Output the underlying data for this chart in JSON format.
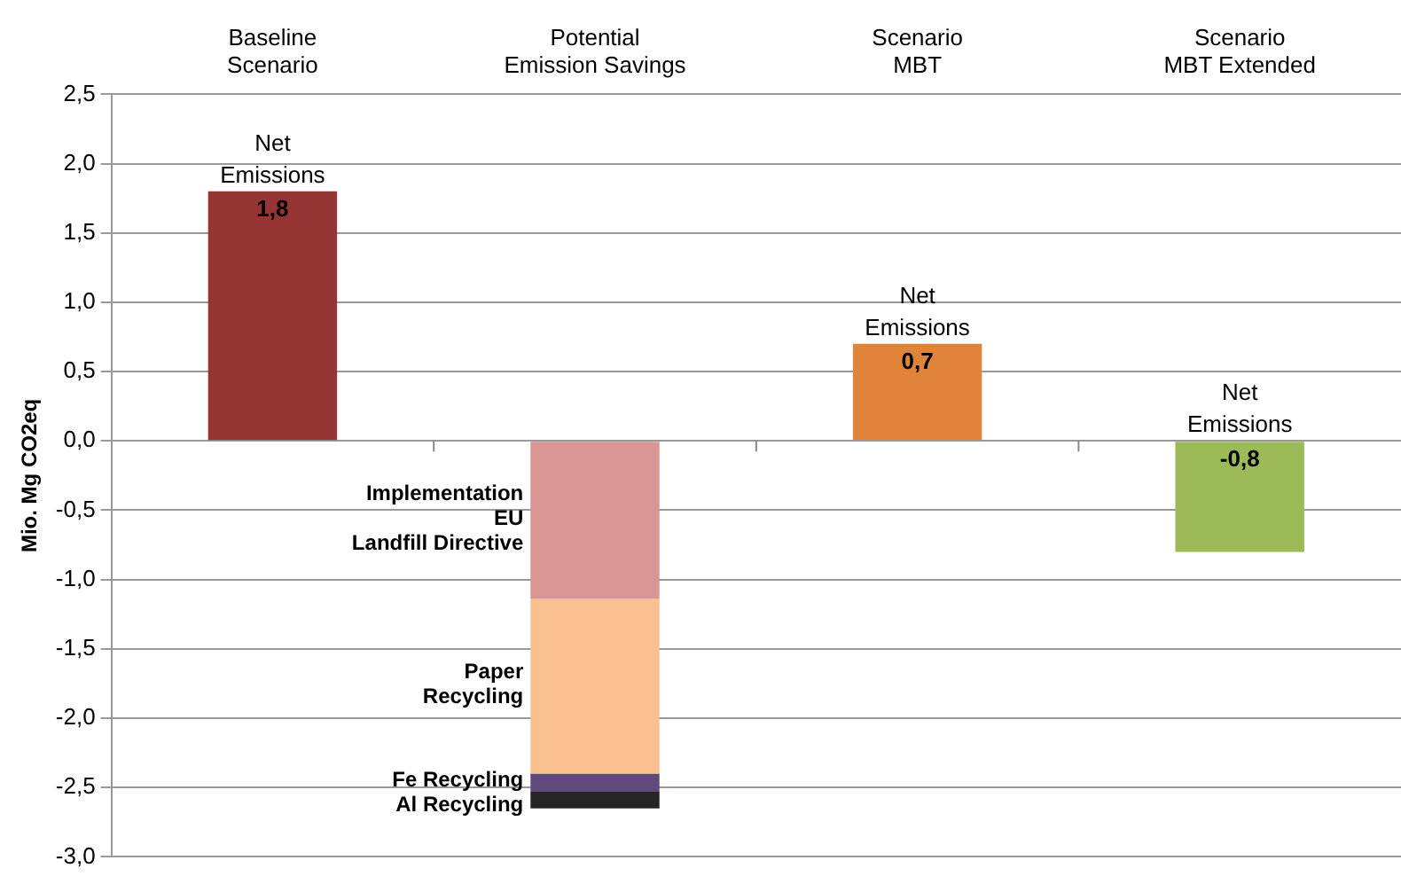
{
  "chart_data": {
    "type": "bar",
    "stacked": true,
    "ylabel": "Mio. Mg CO2eq",
    "categories": [
      "Baseline\nScenario",
      "Potential\nEmission Savings",
      "Scenario\nMBT",
      "Scenario\nMBT Extended"
    ],
    "series": [
      {
        "name": "Net\nEmissions",
        "colors": [
          "#963634",
          null,
          "#e0843a",
          "#9bbb59"
        ],
        "values": [
          1.8,
          null,
          0.7,
          -0.8
        ],
        "value_labels": [
          "1,8",
          null,
          "0,7",
          "-0,8"
        ]
      },
      {
        "name": "Implementation\nEU\nLandfill Directive",
        "color": "#d99694",
        "values": [
          null,
          -1.14,
          null,
          null
        ]
      },
      {
        "name": "Paper\nRecycling",
        "color": "#fac090",
        "values": [
          null,
          -1.26,
          null,
          null
        ]
      },
      {
        "name": "Fe Recycling",
        "color": "#604a7b",
        "values": [
          null,
          -0.13,
          null,
          null
        ]
      },
      {
        "name": "Al Recycling",
        "color": "#262626",
        "values": [
          null,
          -0.12,
          null,
          null
        ]
      }
    ],
    "ylim": [
      -3.0,
      2.5
    ],
    "yticks": [
      {
        "value": 2.5,
        "label": "2,5"
      },
      {
        "value": 2.0,
        "label": "2,0"
      },
      {
        "value": 1.5,
        "label": "1,5"
      },
      {
        "value": 1.0,
        "label": "1,0"
      },
      {
        "value": 0.5,
        "label": "0,5"
      },
      {
        "value": 0.0,
        "label": "0,0"
      },
      {
        "value": -0.5,
        "label": "-0,5"
      },
      {
        "value": -1.0,
        "label": "-1,0"
      },
      {
        "value": -1.5,
        "label": "-1,5"
      },
      {
        "value": -2.0,
        "label": "-2,0"
      },
      {
        "value": -2.5,
        "label": "-2,5"
      },
      {
        "value": -3.0,
        "label": "-3,0"
      }
    ],
    "grid": "y",
    "legend": false
  }
}
